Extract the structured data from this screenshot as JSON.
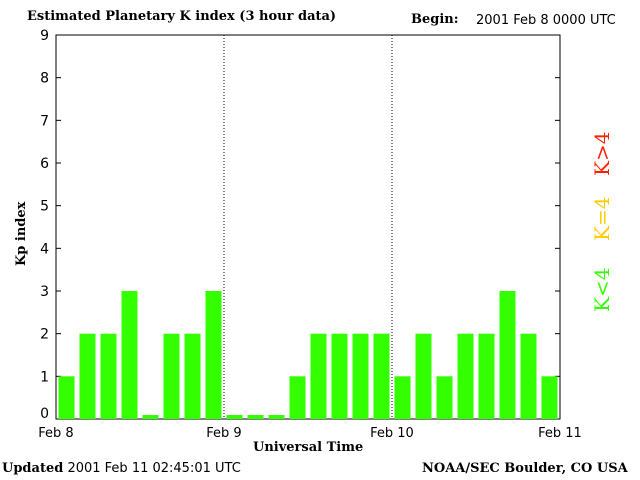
{
  "header": {
    "title": "Estimated Planetary K index (3 hour data)",
    "begin_label": "Begin:",
    "begin_value": "2001 Feb 8 0000 UTC"
  },
  "footer": {
    "updated_label": "Updated",
    "updated_value": "2001 Feb 11 02:45:01 UTC",
    "credit": "NOAA/SEC Boulder, CO USA"
  },
  "legend": {
    "above": {
      "label": "K>4",
      "color": "#ff2200"
    },
    "equal": {
      "label": "K=4",
      "color": "#ffcc00"
    },
    "below": {
      "label": "K<4",
      "color": "#33ff00"
    }
  },
  "chart_data": {
    "type": "bar",
    "title": "Estimated Planetary K index (3 hour data)",
    "xlabel": "Universal Time",
    "ylabel": "Kp index",
    "ylim": [
      0,
      9
    ],
    "yticks": [
      "0",
      "1",
      "2",
      "3",
      "4",
      "5",
      "6",
      "7",
      "8",
      "9"
    ],
    "xticks": [
      "Feb 8",
      "Feb 9",
      "Feb 10",
      "Feb 11"
    ],
    "bar_color": "#33ff00",
    "series": [
      {
        "values": [
          1,
          2,
          2,
          3,
          0,
          2,
          2,
          3,
          0,
          0,
          0,
          1,
          2,
          2,
          2,
          2,
          1,
          2,
          1,
          2,
          2,
          3,
          2,
          1
        ]
      }
    ]
  }
}
